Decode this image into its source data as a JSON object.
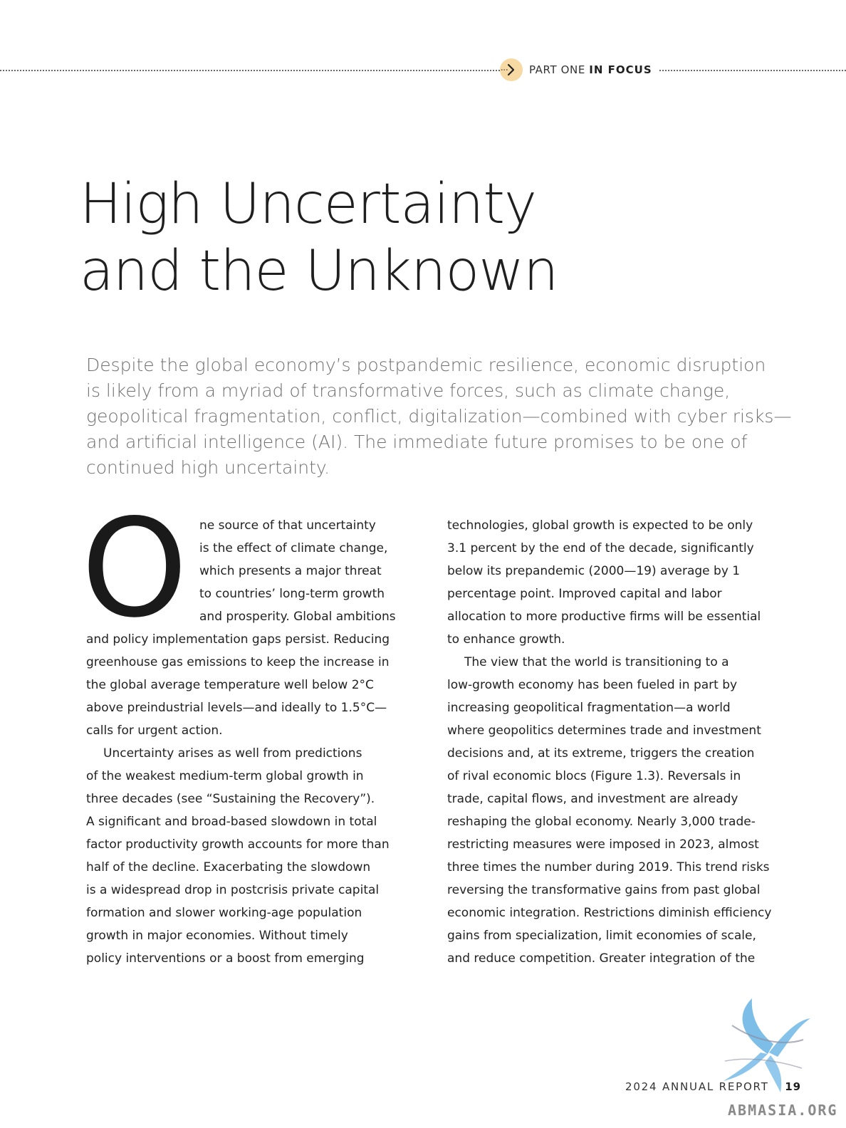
{
  "header": {
    "section_part": "PART ONE",
    "section_focus": "IN FOCUS",
    "icon": "chevron-right-icon",
    "badge_color": "#f7d9a4"
  },
  "title_lines": [
    "High Uncertainty",
    "and the Unknown"
  ],
  "lede_lines": [
    "Despite the global economy’s postpandemic resilience, economic disruption",
    "is likely from a myriad of transformative forces, such as climate change,",
    "geopolitical fragmentation, conflict, digitalization—combined with cyber risks—",
    "and artificial intelligence (AI). The immediate future promises to be one of",
    "continued high uncertainty."
  ],
  "dropcap": "O",
  "left_column": [
    "ne source of that uncertainty",
    "is the effect of climate change,",
    "which presents a major threat",
    "to countries’ long-term growth",
    "and prosperity. Global ambitions",
    "and policy implementation gaps persist. Reducing",
    "greenhouse gas emissions to keep the increase in",
    "the global average temperature well below 2°C",
    "above preindustrial levels—and ideally to 1.5°C—",
    "calls for urgent action.",
    "Uncertainty arises as well from predictions",
    "of the weakest medium-term global growth in",
    "three decades (see “Sustaining the Recovery”).",
    "A significant and broad-based slowdown in total",
    "factor productivity growth accounts for more than",
    "half of the decline. Exacerbating the slowdown",
    "is a widespread drop in postcrisis private capital",
    "formation and slower working-age population",
    "growth in major economies. Without timely",
    "policy interventions or a boost from emerging"
  ],
  "right_column": [
    "technologies, global growth is expected to be only",
    "3.1 percent by the end of the decade, significantly",
    "below its prepandemic (2000—19) average by 1",
    "percentage point. Improved capital and labor",
    "allocation to more productive firms will be essential",
    "to enhance growth.",
    "The view that the world is transitioning to a",
    "low-growth economy has been fueled in part by",
    "increasing geopolitical fragmentation—a world",
    "where geopolitics determines trade and investment",
    "decisions and, at its extreme, triggers the creation",
    "of rival economic blocs (Figure 1.3). Reversals in",
    "trade, capital flows, and investment are already",
    "reshaping the global economy. Nearly 3,000 trade-",
    "restricting measures were imposed in 2023, almost",
    "three times the number during 2019. This trend risks",
    "reversing the transformative gains from past global",
    "economic integration. Restrictions diminish efficiency",
    "gains from specialization, limit economies of scale,",
    "and reduce competition. Greater integration of the"
  ],
  "footer": {
    "report_label": "2024 ANNUAL REPORT",
    "page_number": "19"
  },
  "watermark": {
    "text": "ABMASIA.ORG",
    "icon": "bird-logo-icon",
    "color": "#6fb7e6"
  }
}
